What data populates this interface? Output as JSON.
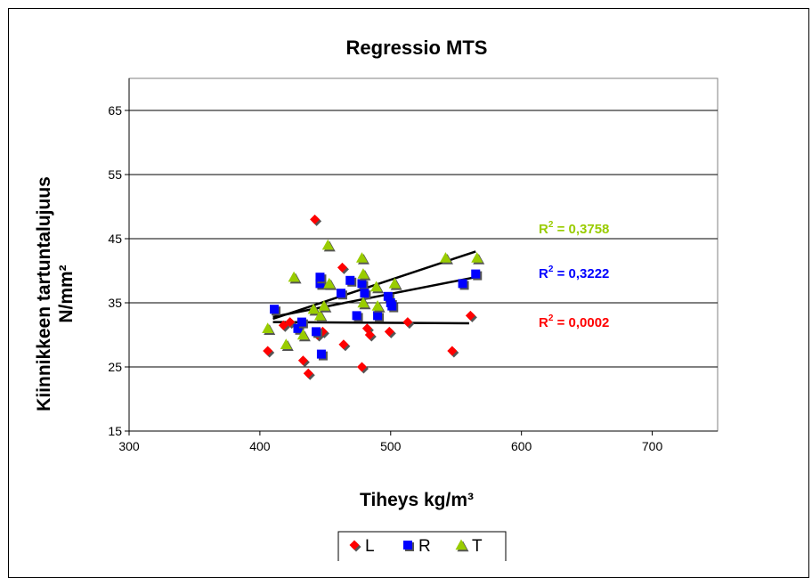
{
  "chart_data": {
    "type": "scatter",
    "title": "Regressio MTS",
    "xlabel": "Tiheys kg/m³",
    "ylabel_line1": "Kiinnikkeen tartuntalujuus",
    "ylabel_line2": "N/mm²",
    "xlim": [
      300,
      750
    ],
    "ylim": [
      15,
      70
    ],
    "x_ticks": [
      "300",
      "400",
      "500",
      "600",
      "700"
    ],
    "y_ticks": [
      "15",
      "25",
      "35",
      "45",
      "55",
      "65"
    ],
    "grid": "horizontal",
    "legend_position": "bottom",
    "series": [
      {
        "name": "L",
        "color": "#ff0000",
        "marker": "diamond",
        "points": [
          [
            406,
            27.5
          ],
          [
            418,
            31.5
          ],
          [
            423,
            32
          ],
          [
            433,
            26
          ],
          [
            437,
            24
          ],
          [
            442,
            48
          ],
          [
            444,
            30
          ],
          [
            448,
            30.5
          ],
          [
            463,
            40.5
          ],
          [
            464,
            28.5
          ],
          [
            478,
            25
          ],
          [
            482,
            31
          ],
          [
            484,
            30
          ],
          [
            499,
            30.5
          ],
          [
            513,
            32
          ],
          [
            547,
            27.5
          ],
          [
            561,
            33
          ]
        ],
        "trendline": {
          "x": [
            410,
            560
          ],
          "y": [
            32.0,
            31.8
          ]
        },
        "r2": "R² = 0,0002"
      },
      {
        "name": "R",
        "color": "#0000ff",
        "marker": "square",
        "points": [
          [
            411,
            34
          ],
          [
            429,
            31
          ],
          [
            432,
            32
          ],
          [
            443,
            30.5
          ],
          [
            446,
            38
          ],
          [
            446,
            39
          ],
          [
            447,
            27
          ],
          [
            462,
            36.5
          ],
          [
            469,
            38.5
          ],
          [
            474,
            33
          ],
          [
            478,
            38
          ],
          [
            480,
            36.5
          ],
          [
            490,
            33
          ],
          [
            498,
            36
          ],
          [
            500,
            35
          ],
          [
            501,
            34.5
          ],
          [
            555,
            38
          ],
          [
            565,
            39.5
          ]
        ],
        "trendline": {
          "x": [
            410,
            565
          ],
          "y": [
            32.8,
            39.0
          ]
        },
        "r2": "R² = 0,3222"
      },
      {
        "name": "T",
        "color": "#99cc00",
        "marker": "triangle",
        "points": [
          [
            406,
            31
          ],
          [
            420,
            28.5
          ],
          [
            426,
            39
          ],
          [
            433,
            30
          ],
          [
            441,
            34
          ],
          [
            446,
            33
          ],
          [
            449,
            34.5
          ],
          [
            452,
            44
          ],
          [
            453,
            38
          ],
          [
            478,
            42
          ],
          [
            479,
            39.5
          ],
          [
            479,
            35
          ],
          [
            489,
            37.5
          ],
          [
            490,
            34.5
          ],
          [
            503,
            38
          ],
          [
            542,
            42
          ],
          [
            566,
            42
          ]
        ],
        "trendline": {
          "x": [
            410,
            565
          ],
          "y": [
            32.5,
            43.0
          ]
        },
        "r2": "R² = 0,3758"
      }
    ]
  }
}
